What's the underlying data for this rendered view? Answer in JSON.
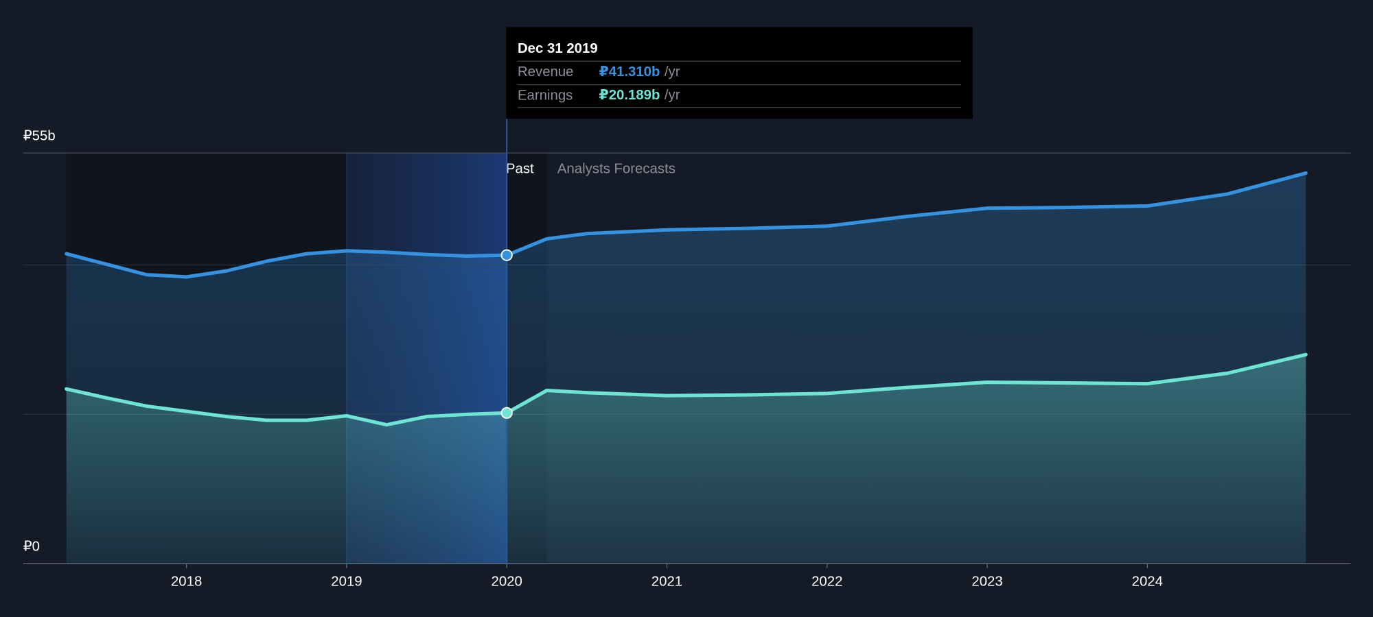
{
  "chart_data": {
    "type": "area",
    "x": [
      2017.25,
      2017.5,
      2017.75,
      2018.0,
      2018.25,
      2018.5,
      2018.75,
      2019.0,
      2019.25,
      2019.5,
      2019.75,
      2020.0,
      2020.25,
      2020.5,
      2021.0,
      2021.5,
      2022.0,
      2022.5,
      2023.0,
      2023.5,
      2024.0,
      2024.5,
      2024.99
    ],
    "series": [
      {
        "name": "Revenue",
        "color": "#3592e0",
        "values": [
          41.5,
          40.1,
          38.7,
          38.4,
          39.2,
          40.5,
          41.5,
          41.9,
          41.7,
          41.4,
          41.2,
          41.31,
          43.5,
          44.2,
          44.7,
          44.9,
          45.2,
          46.5,
          47.6,
          47.7,
          47.9,
          49.5,
          52.3
        ]
      },
      {
        "name": "Earnings",
        "color": "#6ee5d4",
        "values": [
          23.4,
          22.2,
          21.1,
          20.4,
          19.7,
          19.2,
          19.2,
          19.8,
          18.6,
          19.7,
          20.0,
          20.189,
          23.2,
          22.9,
          22.5,
          22.6,
          22.8,
          23.6,
          24.3,
          24.2,
          24.1,
          25.5,
          28.0
        ]
      }
    ],
    "xlim": [
      2016.98,
      2025.27
    ],
    "xticks": [
      2018,
      2019,
      2020,
      2021,
      2022,
      2023,
      2024
    ],
    "ylim": [
      0,
      55
    ],
    "yticks": [
      {
        "value": 0,
        "label": "₽0"
      },
      {
        "value": 55,
        "label": "₽55b"
      }
    ],
    "ygrid": [
      20,
      40
    ],
    "highlight_range": [
      2019,
      2020
    ],
    "past_end": 2020.25,
    "past_label": "Past",
    "forecast_label": "Analysts Forecasts",
    "tooltip": {
      "x": 2020,
      "title": "Dec 31 2019",
      "labels": [
        "₽41.310b",
        "₽20.189b"
      ],
      "unit": "/yr"
    }
  }
}
